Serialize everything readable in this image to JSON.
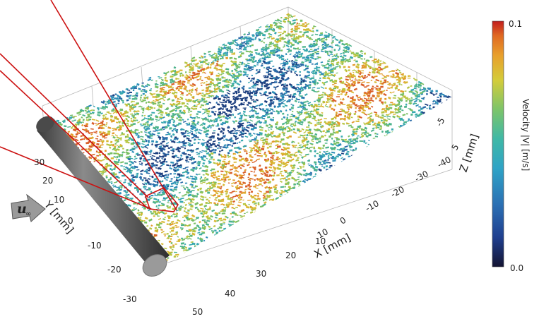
{
  "inflow": {
    "symbol": "u",
    "subscript": "∞"
  },
  "axes": {
    "x": {
      "label": "X [mm]",
      "ticks": [
        "10",
        "0",
        "-10",
        "-20",
        "-30",
        "-40"
      ]
    },
    "x_front": {
      "ticks": [
        "50",
        "40",
        "30",
        "20",
        "10"
      ]
    },
    "y": {
      "label": "Y [mm]",
      "ticks": [
        "30",
        "20",
        "10",
        "0",
        "-10",
        "-20",
        "-30"
      ]
    },
    "z": {
      "label": "Z [mm]",
      "ticks": [
        "-5",
        "5"
      ]
    }
  },
  "colorbar": {
    "label": "Velocity |V| [m/s]",
    "max": "0.1",
    "min": "0.0",
    "colors": [
      "#1a1a4a",
      "#1f3f8f",
      "#2b6fb3",
      "#2fa3c6",
      "#3fb8a6",
      "#7cc46a",
      "#d4cc3a",
      "#e8a02c",
      "#e06a22",
      "#c82a1e"
    ]
  },
  "field_colors": [
    "#1d3f7f",
    "#2a6aa8",
    "#2f90b8",
    "#38a9b0",
    "#4db38c",
    "#79bf64",
    "#b7c540",
    "#d8b833",
    "#e39a2c",
    "#d9602a"
  ],
  "highlight_color": "#cc1111",
  "cylinder_color": "#555555"
}
